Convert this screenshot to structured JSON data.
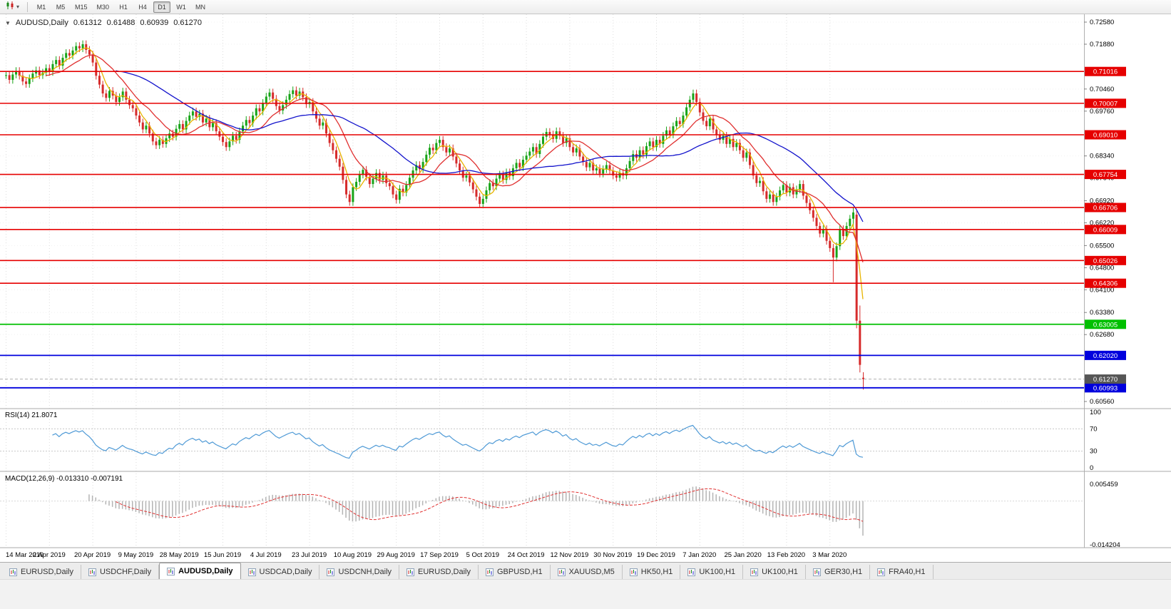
{
  "toolbar": {
    "timeframes": [
      "M1",
      "M5",
      "M15",
      "M30",
      "H1",
      "H4",
      "D1",
      "W1",
      "MN"
    ],
    "active_timeframe": "D1"
  },
  "quote": {
    "symbol_period": "AUDUSD,Daily",
    "open": "0.61312",
    "high": "0.61488",
    "low": "0.60939",
    "close": "0.61270"
  },
  "price_axis": {
    "ticks": [
      "0.72580",
      "0.71880",
      "0.70460",
      "0.69760",
      "0.68340",
      "0.67640",
      "0.66920",
      "0.66220",
      "0.65500",
      "0.64800",
      "0.64100",
      "0.63380",
      "0.62680",
      "0.60560"
    ],
    "current": {
      "label": "0.61270",
      "color": "#565656"
    }
  },
  "levels": [
    {
      "price": 0.71016,
      "label": "0.71016",
      "color": "#e60000",
      "text_color": "#ffffff",
      "width": 1.6
    },
    {
      "price": 0.70007,
      "label": "0.70007",
      "color": "#e60000",
      "text_color": "#ffffff",
      "width": 1.6
    },
    {
      "price": 0.6901,
      "label": "0.69010",
      "color": "#e60000",
      "text_color": "#ffffff",
      "width": 1.6
    },
    {
      "price": 0.67754,
      "label": "0.67754",
      "color": "#e60000",
      "text_color": "#ffffff",
      "width": 1.6
    },
    {
      "price": 0.66706,
      "label": "0.66706",
      "color": "#e60000",
      "text_color": "#ffffff",
      "width": 1.6
    },
    {
      "price": 0.66009,
      "label": "0.66009",
      "color": "#e60000",
      "text_color": "#ffffff",
      "width": 1.6
    },
    {
      "price": 0.65026,
      "label": "0.65026",
      "color": "#e60000",
      "text_color": "#ffffff",
      "width": 1.6
    },
    {
      "price": 0.64306,
      "label": "0.64306",
      "color": "#e60000",
      "text_color": "#ffffff",
      "width": 1.6
    },
    {
      "price": 0.63005,
      "label": "0.63005",
      "color": "#00c000",
      "text_color": "#ffffff",
      "width": 1.8
    },
    {
      "price": 0.6202,
      "label": "0.62020",
      "color": "#0000dd",
      "text_color": "#ffffff",
      "width": 1.8
    },
    {
      "price": 0.60993,
      "label": "0.60993",
      "color": "#0000dd",
      "text_color": "#ffffff",
      "width": 1.8
    }
  ],
  "x_axis": {
    "labels": [
      {
        "label": "14 Mar 2019",
        "i": 0
      },
      {
        "label": "2 Apr 2019",
        "i": 13
      },
      {
        "label": "20 Apr 2019",
        "i": 26
      },
      {
        "label": "9 May 2019",
        "i": 39
      },
      {
        "label": "28 May 2019",
        "i": 52
      },
      {
        "label": "15 Jun 2019",
        "i": 65
      },
      {
        "label": "4 Jul 2019",
        "i": 78
      },
      {
        "label": "23 Jul 2019",
        "i": 91
      },
      {
        "label": "10 Aug 2019",
        "i": 104
      },
      {
        "label": "29 Aug 2019",
        "i": 117
      },
      {
        "label": "17 Sep 2019",
        "i": 130
      },
      {
        "label": "5 Oct 2019",
        "i": 143
      },
      {
        "label": "24 Oct 2019",
        "i": 156
      },
      {
        "label": "12 Nov 2019",
        "i": 169
      },
      {
        "label": "30 Nov 2019",
        "i": 182
      },
      {
        "label": "19 Dec 2019",
        "i": 195
      },
      {
        "label": "7 Jan 2020",
        "i": 208
      },
      {
        "label": "25 Jan 2020",
        "i": 221
      },
      {
        "label": "13 Feb 2020",
        "i": 234
      },
      {
        "label": "3 Mar 2020",
        "i": 247
      }
    ]
  },
  "indicators": {
    "rsi_label": "RSI(14) 21.8071",
    "rsi_levels": [
      100,
      70,
      30,
      0
    ],
    "macd_label": "MACD(12,26,9) -0.013310 -0.007191",
    "macd_axis": [
      "0.005459",
      "-0.014204"
    ]
  },
  "chart_data": {
    "type": "candlestick",
    "symbol": "AUDUSD",
    "period": "Daily",
    "price_range": {
      "top": 0.7258,
      "bottom": 0.6056
    },
    "macd_range": {
      "top": 0.005459,
      "bottom": -0.014204
    },
    "closes": [
      0.709,
      0.7075,
      0.7092,
      0.7103,
      0.7088,
      0.707,
      0.7062,
      0.708,
      0.7095,
      0.7105,
      0.709,
      0.7098,
      0.7112,
      0.71,
      0.7125,
      0.7138,
      0.712,
      0.7145,
      0.716,
      0.7152,
      0.7168,
      0.7182,
      0.7175,
      0.7188,
      0.717,
      0.7155,
      0.713,
      0.7088,
      0.706,
      0.7032,
      0.7018,
      0.704,
      0.7025,
      0.7005,
      0.702,
      0.7038,
      0.7012,
      0.6995,
      0.6985,
      0.6962,
      0.694,
      0.6918,
      0.693,
      0.6905,
      0.688,
      0.6868,
      0.6885,
      0.6872,
      0.689,
      0.6905,
      0.6895,
      0.692,
      0.6935,
      0.6918,
      0.6945,
      0.6962,
      0.6975,
      0.6958,
      0.6968,
      0.694,
      0.6952,
      0.6925,
      0.6938,
      0.6912,
      0.6895,
      0.6878,
      0.6862,
      0.688,
      0.6898,
      0.6885,
      0.6912,
      0.693,
      0.6948,
      0.6938,
      0.6962,
      0.6985,
      0.6975,
      0.7002,
      0.7022,
      0.7035,
      0.7015,
      0.6992,
      0.6978,
      0.6995,
      0.7012,
      0.703,
      0.7042,
      0.7025,
      0.7038,
      0.702,
      0.6998,
      0.7005,
      0.6975,
      0.6952,
      0.693,
      0.694,
      0.6905,
      0.6875,
      0.6852,
      0.6825,
      0.68,
      0.6758,
      0.6712,
      0.6688,
      0.6735,
      0.6752,
      0.6775,
      0.679,
      0.6768,
      0.6745,
      0.6762,
      0.678,
      0.6758,
      0.6772,
      0.6748,
      0.6738,
      0.6712,
      0.6695,
      0.673,
      0.6718,
      0.6742,
      0.6765,
      0.6788,
      0.6805,
      0.6792,
      0.6815,
      0.6838,
      0.686,
      0.6852,
      0.6875,
      0.6885,
      0.6862,
      0.6845,
      0.6858,
      0.6832,
      0.681,
      0.6788,
      0.6765,
      0.6772,
      0.675,
      0.6728,
      0.6705,
      0.6682,
      0.6698,
      0.6725,
      0.6748,
      0.6738,
      0.6762,
      0.6775,
      0.6758,
      0.6782,
      0.677,
      0.6795,
      0.6812,
      0.6798,
      0.6822,
      0.6835,
      0.6848,
      0.6862,
      0.684,
      0.6872,
      0.6895,
      0.691,
      0.6902,
      0.6888,
      0.6912,
      0.6898,
      0.6875,
      0.689,
      0.6862,
      0.6845,
      0.6858,
      0.6832,
      0.6815,
      0.6798,
      0.6812,
      0.6788,
      0.6795,
      0.6778,
      0.6792,
      0.6805,
      0.6788,
      0.6772,
      0.6765,
      0.678,
      0.6772,
      0.6795,
      0.6818,
      0.684,
      0.6828,
      0.6852,
      0.6838,
      0.6865,
      0.688,
      0.6862,
      0.6885,
      0.6872,
      0.6898,
      0.6915,
      0.6902,
      0.6928,
      0.6945,
      0.6935,
      0.6962,
      0.6988,
      0.7012,
      0.7032,
      0.7005,
      0.6972,
      0.6945,
      0.6928,
      0.6952,
      0.6918,
      0.6902,
      0.6885,
      0.6898,
      0.6872,
      0.6888,
      0.6862,
      0.6875,
      0.6852,
      0.6828,
      0.6845,
      0.6805,
      0.6772,
      0.6748,
      0.6755,
      0.6722,
      0.6698,
      0.6712,
      0.6688,
      0.6705,
      0.6725,
      0.6742,
      0.6718,
      0.6735,
      0.6712,
      0.6728,
      0.6745,
      0.6708,
      0.6685,
      0.6662,
      0.6638,
      0.6612,
      0.6588,
      0.6602,
      0.6565,
      0.6542,
      0.6512,
      0.6548,
      0.6602,
      0.658,
      0.6612,
      0.6635,
      0.6655,
      0.6312,
      0.6172,
      0.6127
    ],
    "overrides": {
      "248": [
        0.6542,
        0.6555,
        0.6434,
        0.6512
      ],
      "254": [
        0.6635,
        0.6672,
        0.66,
        0.6655
      ],
      "255": [
        0.6648,
        0.666,
        0.6288,
        0.6312
      ],
      "256": [
        0.6312,
        0.636,
        0.6148,
        0.6172
      ],
      "257": [
        0.61312,
        0.61488,
        0.60939,
        0.6127
      ]
    },
    "moving_averages": [
      {
        "period": 5,
        "color": "#e8b400"
      },
      {
        "period": 13,
        "color": "#e03030"
      },
      {
        "period": 34,
        "color": "#1414cc"
      }
    ]
  },
  "tabs": [
    {
      "label": "EURUSD,Daily"
    },
    {
      "label": "USDCHF,Daily"
    },
    {
      "label": "AUDUSD,Daily",
      "active": true
    },
    {
      "label": "USDCAD,Daily"
    },
    {
      "label": "USDCNH,Daily"
    },
    {
      "label": "EURUSD,Daily"
    },
    {
      "label": "GBPUSD,H1"
    },
    {
      "label": "XAUUSD,M5"
    },
    {
      "label": "HK50,H1"
    },
    {
      "label": "UK100,H1"
    },
    {
      "label": "UK100,H1"
    },
    {
      "label": "GER30,H1"
    },
    {
      "label": "FRA40,H1"
    }
  ],
  "colors": {
    "bull": "#18a418",
    "bear": "#d62b2b",
    "rsi": "#4f9ad6",
    "macd_hist": "#b4b4b4",
    "macd_signal": "#e03030",
    "grid": "#dcdcdc",
    "grid_h": "#f0f0f0",
    "current_line": "#b0b0b0"
  }
}
